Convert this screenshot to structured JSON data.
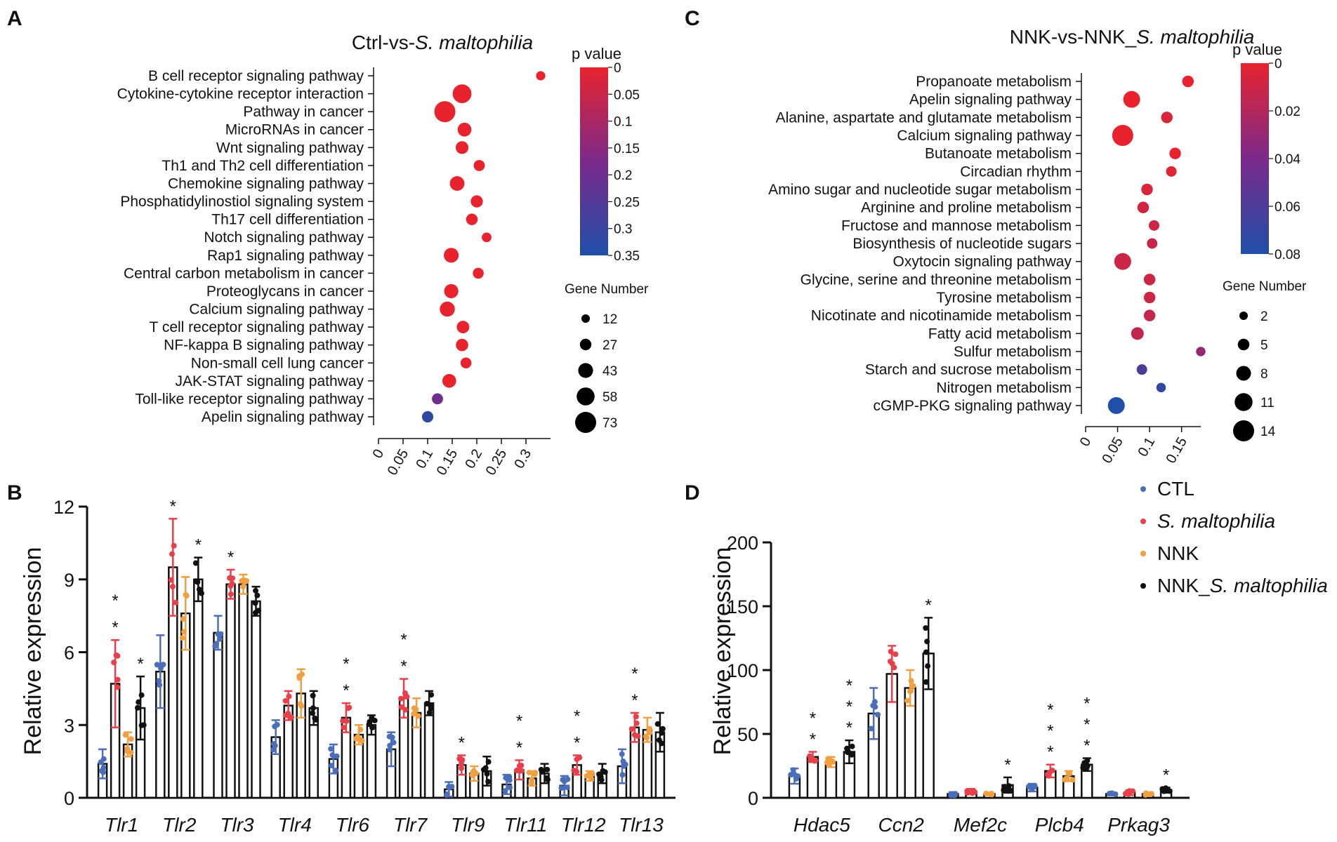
{
  "colors": {
    "ctl": "#4a6eb8",
    "sm": "#e8404a",
    "nnk": "#f0a040",
    "nnk_sm": "#111111",
    "pv_high": "#e8232e",
    "pv_mid": "#7b2a8a",
    "pv_low": "#1f4fa8"
  },
  "chart_data": [
    {
      "panel": "A",
      "type": "scatter",
      "title_prefix": "Ctrl-vs-",
      "title_italic": "S. maltophilia",
      "xlim": [
        0,
        0.35
      ],
      "xticks": [
        "0",
        "0.05",
        "0.1",
        "0.15",
        "0.2",
        "0.25",
        "0.3"
      ],
      "xtick_values": [
        0,
        0.05,
        0.1,
        0.15,
        0.2,
        0.25,
        0.3
      ],
      "pvalue_legend": {
        "title": "p value",
        "ticks": [
          "0",
          "0.05",
          "0.1",
          "0.15",
          "0.2",
          "0.25",
          "0.3",
          "0.35"
        ],
        "max": 0.35
      },
      "gene_legend": {
        "title": "Gene Number",
        "values": [
          12,
          27,
          43,
          58,
          73
        ]
      },
      "points": [
        {
          "label": "B  cell receptor signaling pathway",
          "x": 0.33,
          "genes": 16,
          "p": 0.0
        },
        {
          "label": "Cytokine-cytokine receptor interaction",
          "x": 0.17,
          "genes": 62,
          "p": 0.0
        },
        {
          "label": "Pathway in cancer",
          "x": 0.135,
          "genes": 73,
          "p": 0.0
        },
        {
          "label": "MicroRNAs in cancer",
          "x": 0.175,
          "genes": 38,
          "p": 0.0
        },
        {
          "label": "Wnt signaling pathway",
          "x": 0.17,
          "genes": 33,
          "p": 0.0
        },
        {
          "label": "Th1 and Th2 cell differentiation",
          "x": 0.205,
          "genes": 25,
          "p": 0.0
        },
        {
          "label": "Chemokine signaling pathway",
          "x": 0.16,
          "genes": 42,
          "p": 0.0
        },
        {
          "label": "Phosphatidylinostiol signaling system",
          "x": 0.2,
          "genes": 30,
          "p": 0.0
        },
        {
          "label": "Th17 cell differentiation",
          "x": 0.19,
          "genes": 27,
          "p": 0.0
        },
        {
          "label": "Notch signaling pathway",
          "x": 0.22,
          "genes": 18,
          "p": 0.0
        },
        {
          "label": "Rap1 signaling pathway",
          "x": 0.148,
          "genes": 43,
          "p": 0.0
        },
        {
          "label": "Central carbon metabolism in cancer",
          "x": 0.203,
          "genes": 24,
          "p": 0.0
        },
        {
          "label": "Proteoglycans in cancer",
          "x": 0.148,
          "genes": 40,
          "p": 0.0
        },
        {
          "label": "Calcium signaling pathway",
          "x": 0.14,
          "genes": 44,
          "p": 0.0
        },
        {
          "label": "T cell receptor signaling pathway",
          "x": 0.172,
          "genes": 32,
          "p": 0.0
        },
        {
          "label": "NF-kappa B signaling pathway",
          "x": 0.17,
          "genes": 31,
          "p": 0.0
        },
        {
          "label": "Non-small cell lung cancer",
          "x": 0.178,
          "genes": 24,
          "p": 0.0
        },
        {
          "label": "JAK-STAT signaling pathway",
          "x": 0.144,
          "genes": 38,
          "p": 0.0
        },
        {
          "label": "Toll-like receptor signaling pathway",
          "x": 0.12,
          "genes": 25,
          "p": 0.2
        },
        {
          "label": "Apelin signaling pathway",
          "x": 0.1,
          "genes": 26,
          "p": 0.32
        }
      ]
    },
    {
      "panel": "C",
      "type": "scatter",
      "title_prefix": "NNK-vs-NNK_",
      "title_italic": "S. maltophilia",
      "xlim": [
        0,
        0.18
      ],
      "xticks": [
        "0",
        "0.05",
        "0.1",
        "0.15"
      ],
      "xtick_values": [
        0,
        0.05,
        0.1,
        0.15
      ],
      "pvalue_legend": {
        "title": "p value",
        "ticks": [
          "0",
          "0.02",
          "0.04",
          "0.06",
          "0.08"
        ],
        "max": 0.08
      },
      "gene_legend": {
        "title": "Gene Number",
        "values": [
          2,
          5,
          8,
          11,
          14
        ]
      },
      "points": [
        {
          "label": "Propanoate metabolism",
          "x": 0.16,
          "genes": 5,
          "p": 0.0
        },
        {
          "label": "Apelin signaling pathway",
          "x": 0.072,
          "genes": 10,
          "p": 0.0
        },
        {
          "label": "Alanine, aspartate and glutamate metabolism",
          "x": 0.127,
          "genes": 5,
          "p": 0.005
        },
        {
          "label": "Calcium signaling pathway",
          "x": 0.058,
          "genes": 14,
          "p": 0.0
        },
        {
          "label": "Butanoate metabolism",
          "x": 0.14,
          "genes": 5,
          "p": 0.0
        },
        {
          "label": "Circadian rhythm",
          "x": 0.134,
          "genes": 4,
          "p": 0.003
        },
        {
          "label": "Amino sugar and nucleotide sugar metabolism",
          "x": 0.096,
          "genes": 5,
          "p": 0.005
        },
        {
          "label": "Arginine and proline metabolism",
          "x": 0.09,
          "genes": 5,
          "p": 0.008
        },
        {
          "label": "Fructose and mannose metabolism",
          "x": 0.107,
          "genes": 4,
          "p": 0.01
        },
        {
          "label": "Biosynthesis of nucleotide sugars",
          "x": 0.104,
          "genes": 4,
          "p": 0.012
        },
        {
          "label": "Oxytocin signaling pathway",
          "x": 0.058,
          "genes": 10,
          "p": 0.01
        },
        {
          "label": "Glycine, serine and threonine metabolism",
          "x": 0.1,
          "genes": 5,
          "p": 0.01
        },
        {
          "label": "Tyrosine metabolism",
          "x": 0.1,
          "genes": 5,
          "p": 0.01
        },
        {
          "label": "Nicotinate and nicotinamide metabolism",
          "x": 0.1,
          "genes": 5,
          "p": 0.012
        },
        {
          "label": "Fatty acid metabolism",
          "x": 0.081,
          "genes": 6,
          "p": 0.014
        },
        {
          "label": "Sulfur metabolism",
          "x": 0.18,
          "genes": 3,
          "p": 0.03
        },
        {
          "label": "Starch and sucrose metabolism",
          "x": 0.088,
          "genes": 4,
          "p": 0.06
        },
        {
          "label": "Nitrogen metabolism",
          "x": 0.118,
          "genes": 3,
          "p": 0.072
        },
        {
          "label": "cGMP-PKG signaling pathway",
          "x": 0.048,
          "genes": 10,
          "p": 0.08
        }
      ]
    },
    {
      "panel": "B",
      "type": "bar",
      "ylabel": "Relative expression",
      "ylim": [
        0,
        12
      ],
      "yticks": [
        "0",
        "3",
        "6",
        "9",
        "12"
      ],
      "ytick_values": [
        0,
        3,
        6,
        9,
        12
      ],
      "series_names": [
        "CTL",
        "S. maltophilia",
        "NNK",
        "NNK_S. maltophilia"
      ],
      "categories": [
        "Tlr1",
        "Tlr2",
        "Tlr3",
        "Tlr4",
        "Tlr6",
        "Tlr7",
        "Tlr9",
        "Tlr11",
        "Tlr12",
        "Tlr13"
      ],
      "series": [
        {
          "name": "CTL",
          "values": [
            1.4,
            5.2,
            6.8,
            2.5,
            1.6,
            2.0,
            0.35,
            0.55,
            0.5,
            1.3
          ],
          "errors": [
            0.6,
            1.5,
            0.7,
            0.7,
            0.6,
            0.7,
            0.3,
            0.4,
            0.4,
            0.7
          ]
        },
        {
          "name": "S. maltophilia",
          "values": [
            4.7,
            9.5,
            8.8,
            3.8,
            3.3,
            4.1,
            1.35,
            1.15,
            1.35,
            2.9
          ],
          "errors": [
            1.8,
            2.0,
            0.6,
            0.6,
            0.6,
            0.8,
            0.4,
            0.4,
            0.4,
            0.6
          ]
        },
        {
          "name": "NNK",
          "values": [
            2.2,
            7.6,
            8.8,
            4.3,
            2.6,
            3.5,
            1.0,
            0.8,
            0.9,
            2.8
          ],
          "errors": [
            0.5,
            1.5,
            0.4,
            1.0,
            0.4,
            0.6,
            0.3,
            0.3,
            0.2,
            0.5
          ]
        },
        {
          "name": "NNK_S. maltophilia",
          "values": [
            3.7,
            9.0,
            8.1,
            3.7,
            3.0,
            3.9,
            1.1,
            1.0,
            1.0,
            2.7
          ],
          "errors": [
            1.3,
            0.9,
            0.6,
            0.7,
            0.4,
            0.5,
            0.6,
            0.4,
            0.4,
            0.8
          ]
        }
      ],
      "stars": [
        {
          "cat": 0,
          "series": 1,
          "count": 2
        },
        {
          "cat": 0,
          "series": 3,
          "count": 1
        },
        {
          "cat": 1,
          "series": 1,
          "count": 1
        },
        {
          "cat": 1,
          "series": 3,
          "count": 1
        },
        {
          "cat": 2,
          "series": 1,
          "count": 1
        },
        {
          "cat": 4,
          "series": 1,
          "count": 2
        },
        {
          "cat": 5,
          "series": 1,
          "count": 2
        },
        {
          "cat": 6,
          "series": 1,
          "count": 1
        },
        {
          "cat": 7,
          "series": 1,
          "count": 2
        },
        {
          "cat": 8,
          "series": 1,
          "count": 2
        },
        {
          "cat": 9,
          "series": 1,
          "count": 2
        }
      ]
    },
    {
      "panel": "D",
      "type": "bar",
      "ylabel": "Relative expression",
      "ylim": [
        0,
        200
      ],
      "yticks": [
        "0",
        "50",
        "100",
        "150",
        "200"
      ],
      "ytick_values": [
        0,
        50,
        100,
        150,
        200
      ],
      "categories": [
        "Hdac5",
        "Ccn2",
        "Mef2c",
        "Plcb4",
        "Prkag3"
      ],
      "legend": [
        {
          "key": "ctl",
          "text": "CTL",
          "italic": ""
        },
        {
          "key": "sm",
          "text": "",
          "italic": "S. maltophilia"
        },
        {
          "key": "nnk",
          "text": "NNK",
          "italic": ""
        },
        {
          "key": "nnk_sm",
          "text": "NNK_",
          "italic": "S. maltophilia"
        }
      ],
      "series": [
        {
          "name": "CTL",
          "values": [
            17,
            66,
            3,
            8,
            3
          ],
          "errors": [
            6,
            20,
            1.5,
            3,
            1
          ]
        },
        {
          "name": "S. maltophilia",
          "values": [
            32,
            97,
            5,
            21,
            4
          ],
          "errors": [
            4,
            22,
            2,
            5,
            2
          ]
        },
        {
          "name": "NNK",
          "values": [
            28,
            86,
            3,
            17,
            3
          ],
          "errors": [
            4,
            14,
            1,
            4,
            1
          ]
        },
        {
          "name": "NNK_S. maltophilia",
          "values": [
            36,
            113,
            10,
            26,
            6
          ],
          "errors": [
            9,
            28,
            6,
            5,
            2
          ]
        }
      ],
      "stars": [
        {
          "cat": 0,
          "series": 1,
          "count": 2
        },
        {
          "cat": 0,
          "series": 3,
          "count": 3
        },
        {
          "cat": 1,
          "series": 3,
          "count": 1
        },
        {
          "cat": 2,
          "series": 3,
          "count": 1
        },
        {
          "cat": 3,
          "series": 1,
          "count": 3
        },
        {
          "cat": 3,
          "series": 3,
          "count": 3
        },
        {
          "cat": 4,
          "series": 3,
          "count": 1
        }
      ]
    }
  ],
  "panel_letters": {
    "a": "A",
    "b": "B",
    "c": "C",
    "d": "D"
  }
}
